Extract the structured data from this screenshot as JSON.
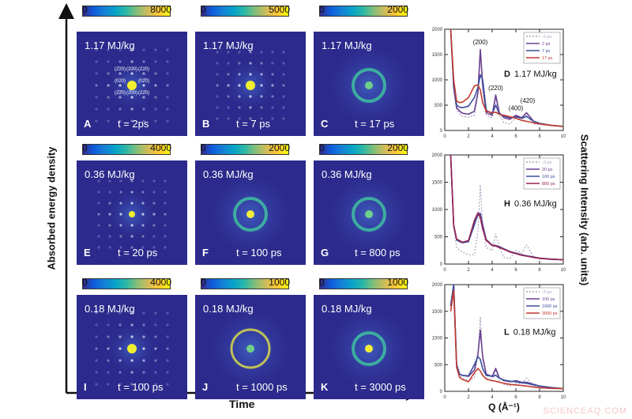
{
  "axes": {
    "y_label": "Absorbed energy density",
    "x_label": "Time",
    "right_label": "Scattering Intensity (arb. units)"
  },
  "panels": [
    {
      "letter": "A",
      "energy": "1.17 MJ/kg",
      "time": "t = 2ps",
      "cbar_min": "0",
      "cbar_max": "8000",
      "indices": [
        "(2̄20)",
        "(200)",
        "(220)",
        "(020)",
        "(02̄0)",
        "(2̄2̄0)",
        "(2̄00)",
        "(22̄0)"
      ]
    },
    {
      "letter": "B",
      "energy": "1.17 MJ/kg",
      "time": "t = 7 ps",
      "cbar_min": "0",
      "cbar_max": "5000"
    },
    {
      "letter": "C",
      "energy": "1.17 MJ/kg",
      "time": "t = 17 ps",
      "cbar_min": "0",
      "cbar_max": "2000"
    },
    {
      "letter": "E",
      "energy": "0.36 MJ/kg",
      "time": "t = 20 ps",
      "cbar_min": "0",
      "cbar_max": "4000"
    },
    {
      "letter": "F",
      "energy": "0.36 MJ/kg",
      "time": "t = 100 ps",
      "cbar_min": "0",
      "cbar_max": "2000"
    },
    {
      "letter": "G",
      "energy": "0.36 MJ/kg",
      "time": "t = 800 ps",
      "cbar_min": "0",
      "cbar_max": "2000"
    },
    {
      "letter": "I",
      "energy": "0.18 MJ/kg",
      "time": "t = 100 ps",
      "cbar_min": "0",
      "cbar_max": "4000"
    },
    {
      "letter": "J",
      "energy": "0.18 MJ/kg",
      "time": "t = 1000 ps",
      "cbar_min": "0",
      "cbar_max": "1000"
    },
    {
      "letter": "K",
      "energy": "0.18 MJ/kg",
      "time": "t = 3000 ps",
      "cbar_min": "0",
      "cbar_max": "1000"
    }
  ],
  "chart_data": [
    {
      "type": "line",
      "letter": "D",
      "label": "1.17 MJ/kg",
      "xlabel": "",
      "ylabel": "",
      "xlim": [
        0,
        10
      ],
      "ylim": [
        0,
        2000
      ],
      "xticks": [
        "0",
        "2",
        "4",
        "6",
        "8",
        "10"
      ],
      "yticks": [
        "0",
        "500",
        "1000",
        "1500",
        "2000"
      ],
      "legend": "top-right",
      "annotations": [
        {
          "text": "(200)",
          "x": 3.0,
          "y": 1700
        },
        {
          "text": "(220)",
          "x": 4.3,
          "y": 800
        },
        {
          "text": "(400)",
          "x": 6.0,
          "y": 400
        },
        {
          "text": "(420)",
          "x": 7.0,
          "y": 550
        }
      ],
      "x": [
        0.5,
        0.75,
        1,
        1.25,
        1.5,
        2,
        2.5,
        2.8,
        3,
        3.2,
        3.5,
        4,
        4.3,
        4.6,
        5,
        5.5,
        6,
        6.5,
        6.9,
        7.5,
        8,
        9,
        10
      ],
      "series": [
        {
          "name": "-2 ps",
          "color": "#a3a3bd",
          "dashed": true,
          "values": [
            2000,
            800,
            400,
            330,
            280,
            260,
            300,
            700,
            1550,
            800,
            300,
            250,
            650,
            300,
            150,
            130,
            250,
            200,
            300,
            130,
            110,
            90,
            80
          ]
        },
        {
          "name": "2 ps",
          "color": "#6b3f8f",
          "values": [
            2000,
            850,
            450,
            380,
            340,
            320,
            380,
            750,
            1600,
            900,
            350,
            300,
            700,
            350,
            250,
            220,
            300,
            250,
            350,
            180,
            140,
            100,
            80
          ]
        },
        {
          "name": "7 ps",
          "color": "#3b4f9c",
          "values": [
            2000,
            900,
            500,
            460,
            450,
            480,
            650,
            850,
            1100,
            1000,
            400,
            330,
            500,
            330,
            280,
            250,
            270,
            240,
            280,
            180,
            140,
            100,
            80
          ]
        },
        {
          "name": "17 ps",
          "color": "#c23a30",
          "values": [
            2000,
            1000,
            580,
            550,
            560,
            650,
            880,
            900,
            800,
            550,
            380,
            350,
            360,
            320,
            300,
            270,
            240,
            200,
            180,
            150,
            130,
            100,
            80
          ]
        }
      ]
    },
    {
      "type": "line",
      "letter": "H",
      "label": "0.36 MJ/kg",
      "xlabel": "",
      "ylabel": "",
      "xlim": [
        0,
        10
      ],
      "ylim": [
        0,
        2000
      ],
      "xticks": [
        "0",
        "2",
        "4",
        "6",
        "8",
        "10"
      ],
      "yticks": [
        "0",
        "500",
        "1000",
        "1500",
        "2000"
      ],
      "legend": "top-right",
      "annotations": [],
      "x": [
        0.5,
        0.75,
        1,
        1.25,
        1.5,
        2,
        2.5,
        2.8,
        3,
        3.2,
        3.5,
        4,
        4.3,
        4.6,
        5,
        5.5,
        6,
        6.5,
        6.9,
        7.5,
        8,
        9,
        10
      ],
      "series": [
        {
          "name": "-2 ps",
          "color": "#a3a3bd",
          "dashed": true,
          "values": [
            2000,
            700,
            300,
            250,
            220,
            170,
            170,
            600,
            1450,
            700,
            300,
            250,
            550,
            300,
            120,
            100,
            250,
            200,
            350,
            130,
            100,
            80,
            70
          ]
        },
        {
          "name": "20 ps",
          "color": "#6b3f8f",
          "values": [
            2000,
            700,
            450,
            420,
            400,
            420,
            750,
            900,
            930,
            720,
            450,
            350,
            340,
            320,
            280,
            230,
            200,
            170,
            150,
            130,
            110,
            90,
            80
          ]
        },
        {
          "name": "100 ps",
          "color": "#3b4f9c",
          "values": [
            2000,
            700,
            440,
            410,
            390,
            410,
            720,
            920,
            900,
            680,
            440,
            340,
            330,
            310,
            270,
            225,
            195,
            165,
            150,
            125,
            105,
            90,
            80
          ]
        },
        {
          "name": "800 ps",
          "color": "#9a2455",
          "values": [
            2000,
            720,
            460,
            430,
            400,
            430,
            800,
            940,
            850,
            640,
            430,
            340,
            330,
            300,
            270,
            220,
            190,
            160,
            145,
            120,
            105,
            88,
            78
          ]
        }
      ]
    },
    {
      "type": "line",
      "letter": "L",
      "label": "0.18 MJ/kg",
      "xlabel": "Q (Å⁻¹)",
      "ylabel": "",
      "xlim": [
        0,
        10
      ],
      "ylim": [
        0,
        2000
      ],
      "xticks": [
        "0",
        "2",
        "4",
        "6",
        "8",
        "10"
      ],
      "yticks": [
        "0",
        "500",
        "1000",
        "1500",
        "2000"
      ],
      "legend": "top-right",
      "annotations": [],
      "x": [
        0.5,
        0.75,
        1,
        1.25,
        1.5,
        2,
        2.5,
        2.8,
        3,
        3.2,
        3.5,
        4,
        4.3,
        4.6,
        5,
        5.5,
        6,
        6.5,
        6.9,
        7.5,
        8,
        9,
        10
      ],
      "series": [
        {
          "name": "-2 ps",
          "color": "#a3a3bd",
          "dashed": true,
          "values": [
            1500,
            1800,
            450,
            300,
            250,
            200,
            250,
            700,
            1400,
            600,
            250,
            200,
            400,
            200,
            130,
            100,
            150,
            150,
            250,
            100,
            80,
            60,
            50
          ]
        },
        {
          "name": "100 ps",
          "color": "#6b3f8f",
          "values": [
            1600,
            2000,
            500,
            320,
            300,
            280,
            400,
            700,
            1150,
            650,
            320,
            280,
            430,
            250,
            200,
            180,
            200,
            170,
            170,
            130,
            100,
            70,
            50
          ]
        },
        {
          "name": "1000 ps",
          "color": "#3b4f9c",
          "values": [
            1600,
            2000,
            500,
            320,
            300,
            290,
            500,
            650,
            600,
            420,
            300,
            280,
            300,
            250,
            210,
            190,
            180,
            160,
            150,
            120,
            100,
            70,
            50
          ]
        },
        {
          "name": "3000 ps",
          "color": "#c23a30",
          "values": [
            1500,
            1900,
            450,
            260,
            220,
            180,
            350,
            430,
            380,
            300,
            230,
            200,
            190,
            170,
            150,
            130,
            120,
            110,
            100,
            80,
            70,
            55,
            50
          ]
        }
      ]
    }
  ],
  "watermark": "SCIENCEAQ.COM"
}
